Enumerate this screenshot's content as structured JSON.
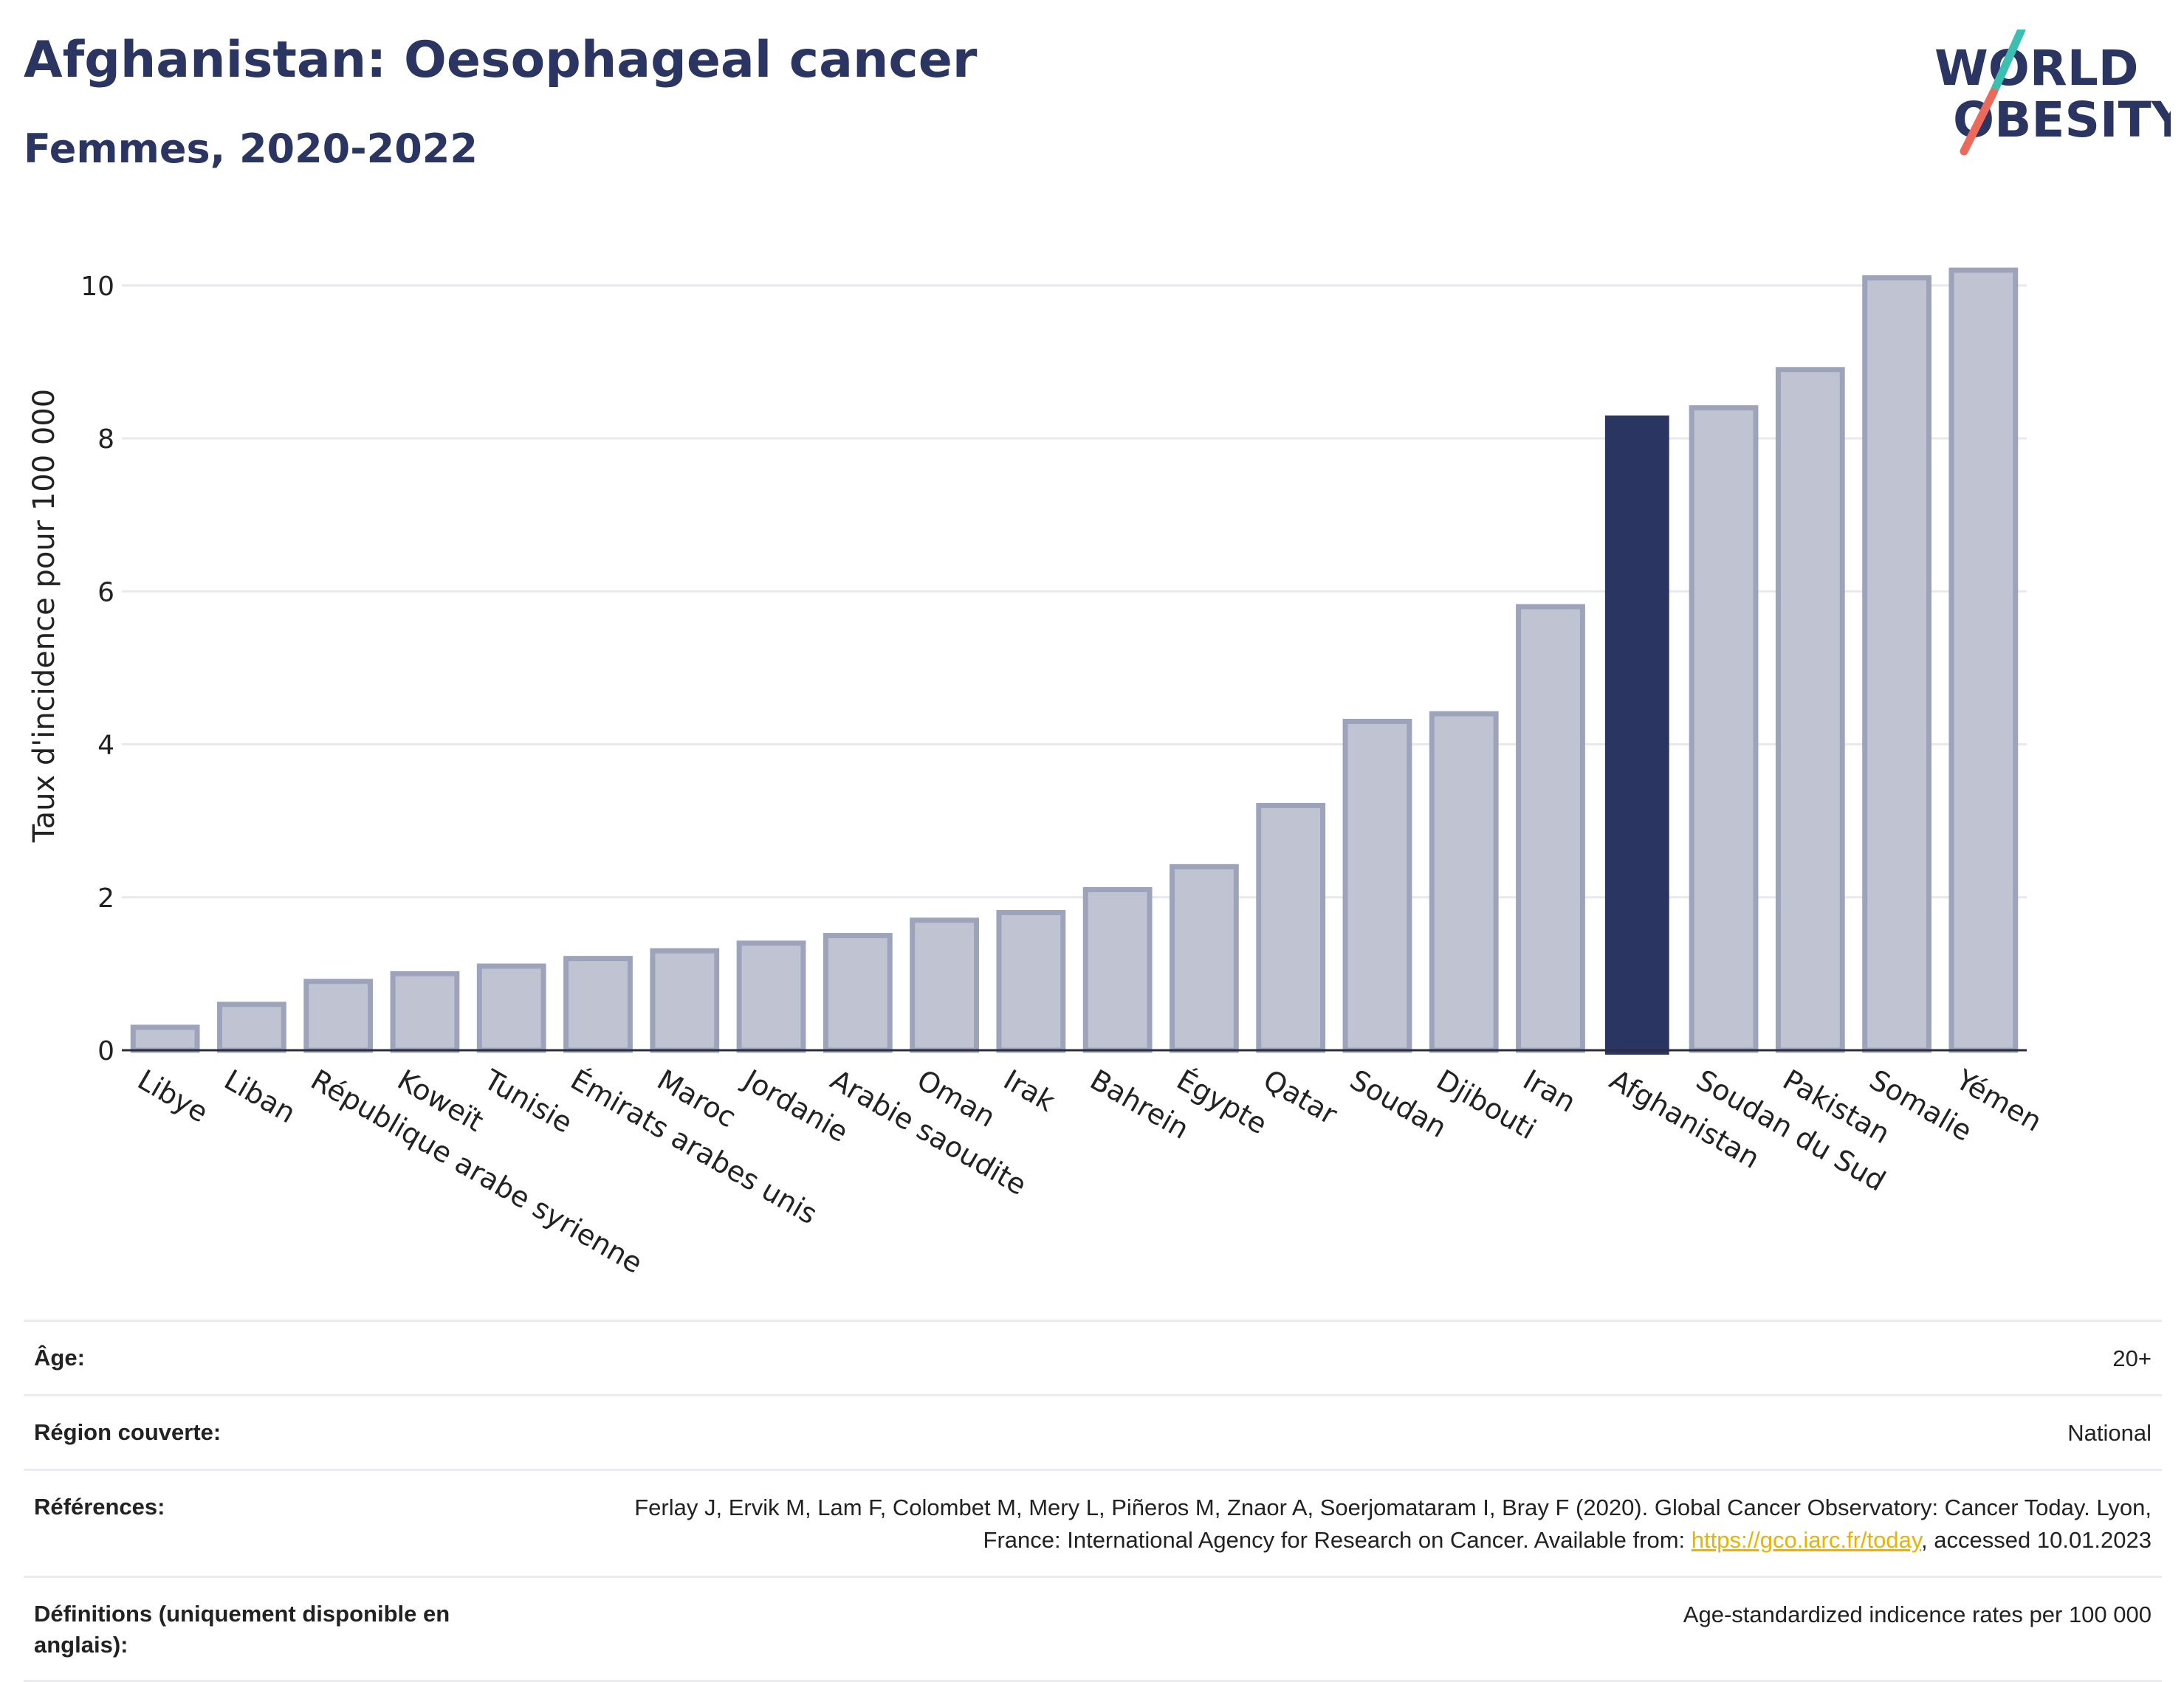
{
  "header": {
    "title": "Afghanistan: Oesophageal cancer",
    "subtitle": "Femmes, 2020-2022",
    "logo_line1": "WORLD",
    "logo_line2": "OBESITY"
  },
  "colors": {
    "highlight": "#2b3561",
    "bar_fill": "#c0c3d1",
    "bar_stroke": "#9ea3bc",
    "grid": "#e8e8ee",
    "logo_teal": "#3bbfb0",
    "logo_coral": "#ec6a5c"
  },
  "chart_data": {
    "type": "bar",
    "ylabel": "Taux d'incidence pour 100 000",
    "xlabel": "",
    "ylim": [
      0,
      10.5
    ],
    "yticks": [
      0,
      2,
      4,
      6,
      8,
      10
    ],
    "grid": true,
    "highlight": "Afghanistan",
    "categories": [
      "Libye",
      "Liban",
      "République arabe syrienne",
      "Koweït",
      "Tunisie",
      "Émirats arabes unis",
      "Maroc",
      "Jordanie",
      "Arabie saoudite",
      "Oman",
      "Irak",
      "Bahrein",
      "Égypte",
      "Qatar",
      "Soudan",
      "Djibouti",
      "Iran",
      "Afghanistan",
      "Soudan du Sud",
      "Pakistan",
      "Somalie",
      "Yémen"
    ],
    "values": [
      0.3,
      0.6,
      0.9,
      1.0,
      1.1,
      1.2,
      1.3,
      1.4,
      1.5,
      1.7,
      1.8,
      2.1,
      2.4,
      3.2,
      4.3,
      4.4,
      5.8,
      8.3,
      8.4,
      8.9,
      10.1,
      10.2
    ]
  },
  "meta": {
    "age_label": "Âge:",
    "age_value": "20+",
    "region_label": "Région couverte:",
    "region_value": "National",
    "refs_label": "Références:",
    "refs_text_1": "Ferlay J, Ervik M, Lam F, Colombet M, Mery L, Piñeros M, Znaor A, Soerjomataram I, Bray F (2020). Global Cancer Observatory: Cancer Today. Lyon, France: International Agency for Research on Cancer. Available from: ",
    "refs_link": "https://gco.iarc.fr/today",
    "refs_text_2": ", accessed 10.01.2023",
    "defs_label": "Définitions (uniquement disponible en anglais):",
    "defs_value": "Age-standardized indicence rates per 100 000"
  }
}
